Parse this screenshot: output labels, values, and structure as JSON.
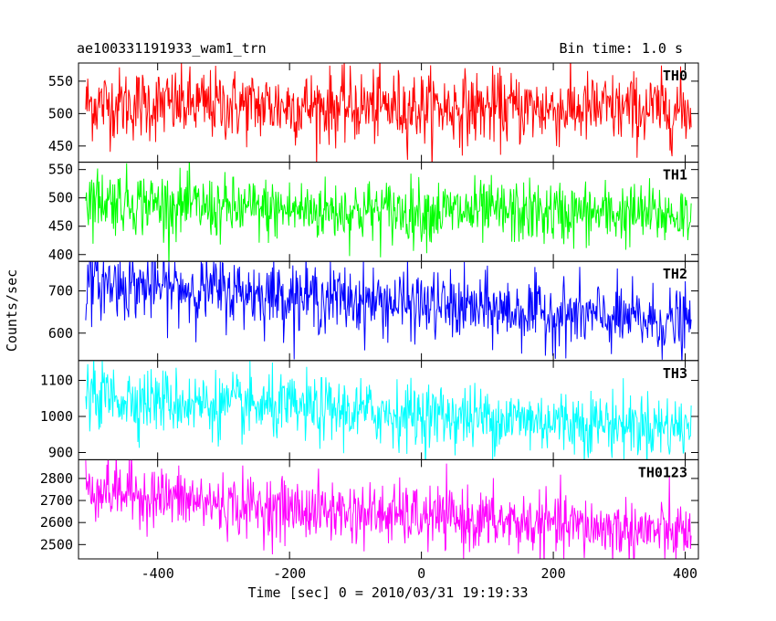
{
  "header": {
    "title": "ae100331191933_wam1_trn",
    "bin_time": "Bin time: 1.0 s"
  },
  "chart_data": {
    "type": "line",
    "xlabel": "Time [sec] 0 = 2010/03/31 19:19:33",
    "ylabel": "Counts/sec",
    "xlim": [
      -520,
      420
    ],
    "x_ticks": [
      -400,
      -200,
      0,
      200,
      400
    ],
    "x_range_data": [
      -509,
      409
    ],
    "bin_size_s": 1.0,
    "panels": [
      {
        "name": "TH0",
        "color": "#ff0000",
        "ylim": [
          425,
          578
        ],
        "y_ticks": [
          450,
          500,
          550
        ],
        "trend": [
          [
            -509,
            515
          ],
          [
            409,
            505
          ]
        ],
        "scatter": 28
      },
      {
        "name": "TH1",
        "color": "#00ff00",
        "ylim": [
          388,
          563
        ],
        "y_ticks": [
          400,
          450,
          500,
          550
        ],
        "trend": [
          [
            -509,
            500
          ],
          [
            -300,
            480
          ],
          [
            409,
            470
          ]
        ],
        "scatter": 28
      },
      {
        "name": "TH2",
        "color": "#0000ff",
        "ylim": [
          535,
          770
        ],
        "y_ticks": [
          600,
          700
        ],
        "trend": [
          [
            -509,
            720
          ],
          [
            -300,
            700
          ],
          [
            409,
            622
          ]
        ],
        "scatter": 40
      },
      {
        "name": "TH3",
        "color": "#00ffff",
        "ylim": [
          880,
          1155
        ],
        "y_ticks": [
          900,
          1000,
          1100
        ],
        "trend": [
          [
            -509,
            1060
          ],
          [
            -300,
            1030
          ],
          [
            409,
            970
          ]
        ],
        "scatter": 45
      },
      {
        "name": "TH0123",
        "color": "#ff00ff",
        "ylim": [
          2435,
          2885
        ],
        "y_ticks": [
          2500,
          2600,
          2700,
          2800
        ],
        "trend": [
          [
            -509,
            2760
          ],
          [
            -300,
            2680
          ],
          [
            409,
            2550
          ]
        ],
        "scatter": 70
      }
    ]
  }
}
